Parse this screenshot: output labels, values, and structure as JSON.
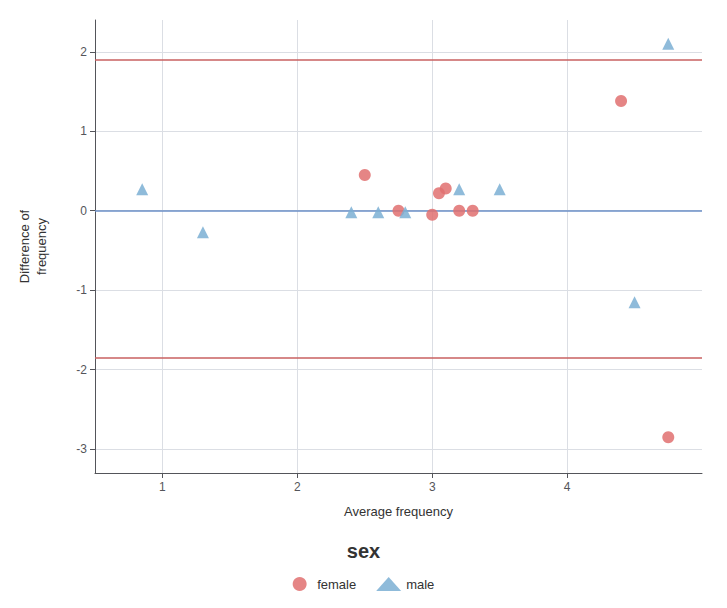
{
  "chart_data": {
    "type": "scatter",
    "xlabel": "Average frequency",
    "ylabel": "Difference of\nfrequency",
    "series": [
      {
        "name": "female",
        "color": "#E07070",
        "marker": "circle",
        "x": [
          2.5,
          2.75,
          3.0,
          3.05,
          3.1,
          3.2,
          3.3,
          4.4,
          4.75
        ],
        "values": [
          0.45,
          0.0,
          -0.05,
          0.22,
          0.28,
          0.0,
          0.0,
          1.38,
          -2.85
        ]
      },
      {
        "name": "male",
        "color": "#7BAFD4",
        "marker": "triangle",
        "x": [
          0.85,
          1.3,
          2.4,
          2.6,
          2.8,
          3.2,
          3.5,
          4.5,
          4.75
        ],
        "values": [
          0.27,
          -0.27,
          -0.02,
          -0.02,
          -0.02,
          0.27,
          0.27,
          -1.15,
          2.1
        ]
      }
    ],
    "hlines": [
      {
        "value": 0.0,
        "color": "#6B8FC7"
      },
      {
        "value": 1.9,
        "color": "#C86060"
      },
      {
        "value": -1.85,
        "color": "#C86060"
      }
    ],
    "xlim": [
      0.5,
      5.0
    ],
    "ylim": [
      -3.3,
      2.4
    ],
    "xticks": [
      1,
      2,
      3,
      4
    ],
    "yticks": [
      -3,
      -2,
      -1,
      0,
      1,
      2
    ],
    "grid": true,
    "legend": "bottom",
    "legend_title": "sex"
  }
}
